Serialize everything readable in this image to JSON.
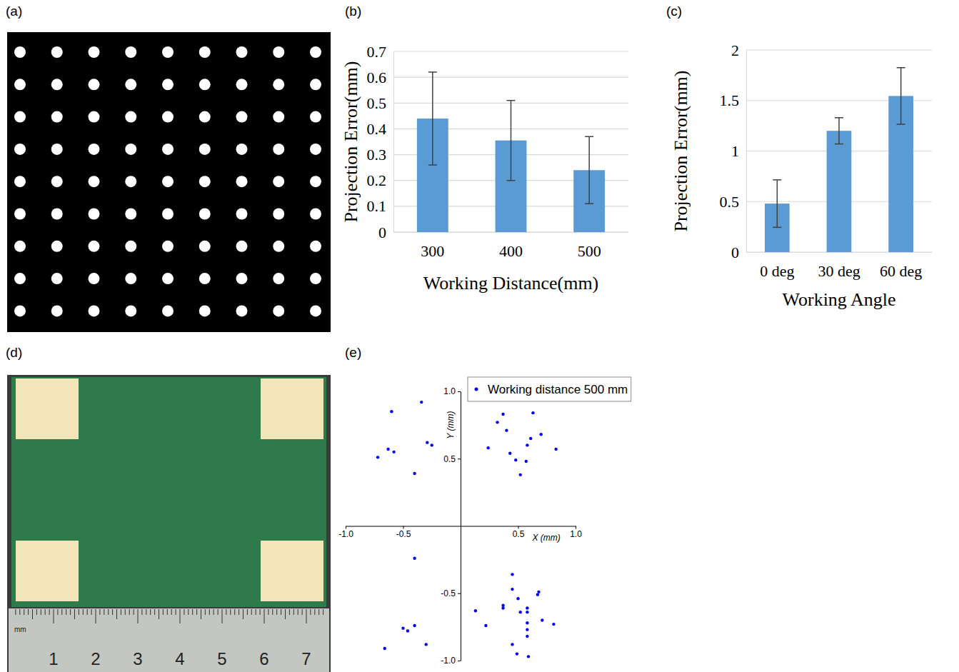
{
  "chart_data": [
    {
      "panel_label": "(b)",
      "type": "bar",
      "x_label": "Working Distance(mm)",
      "y_label": "Projection Error(mm)",
      "categories": [
        "300",
        "400",
        "500"
      ],
      "values": [
        0.44,
        0.355,
        0.24
      ],
      "errors": [
        0.18,
        0.155,
        0.13
      ],
      "color": "#5b9bd5",
      "ylim": [
        0,
        0.7
      ],
      "yticks": [
        0,
        0.1,
        0.2,
        0.3,
        0.4,
        0.5,
        0.6,
        0.7
      ],
      "grid": true
    },
    {
      "panel_label": "(c)",
      "type": "bar",
      "x_label": "Working Angle",
      "y_label": "Projection Error(mm)",
      "categories": [
        "0 deg",
        "30 deg",
        "60 deg"
      ],
      "values": [
        0.48,
        1.2,
        1.545
      ],
      "errors": [
        0.235,
        0.13,
        0.28
      ],
      "color": "#5b9bd5",
      "ylim": [
        0,
        2
      ],
      "yticks": [
        0,
        0.5,
        1,
        1.5,
        2
      ],
      "grid": true
    },
    {
      "panel_label": "(e)",
      "type": "scatter",
      "x_label": "X (mm)",
      "y_label": "Y (mm)",
      "series": [
        {
          "name": "Working distance 500 mm",
          "color": "#0000ff",
          "marker": "circle",
          "x": [
            -0.6,
            -0.34,
            -0.29,
            -0.25,
            -0.63,
            -0.58,
            -0.72,
            -0.4,
            0.32,
            0.37,
            0.4,
            0.63,
            0.7,
            0.61,
            0.58,
            0.24,
            0.43,
            0.48,
            0.57,
            0.52,
            0.83,
            -0.4,
            -0.4,
            -0.5,
            -0.46,
            -0.3,
            -0.66,
            0.45,
            0.45,
            0.68,
            0.67,
            0.5,
            0.13,
            0.37,
            0.37,
            0.58,
            0.52,
            0.58,
            0.22,
            0.58,
            0.58,
            0.71,
            0.81,
            0.58,
            0.45,
            0.49,
            0.59
          ],
          "values": [
            0.85,
            0.92,
            0.62,
            0.6,
            0.57,
            0.55,
            0.51,
            0.39,
            0.77,
            0.83,
            0.71,
            0.84,
            0.68,
            0.65,
            0.6,
            0.58,
            0.54,
            0.49,
            0.48,
            0.38,
            0.57,
            -0.24,
            -0.74,
            -0.76,
            -0.78,
            -0.88,
            -0.91,
            -0.36,
            -0.47,
            -0.49,
            -0.51,
            -0.54,
            -0.63,
            -0.59,
            -0.61,
            -0.61,
            -0.64,
            -0.64,
            -0.74,
            -0.72,
            -0.77,
            -0.7,
            -0.73,
            -0.82,
            -0.88,
            -0.95,
            -0.97
          ]
        }
      ],
      "xlim": [
        -1,
        1
      ],
      "xticks": [
        {
          "value": -1,
          "label": "-1.0"
        },
        {
          "value": -0.5,
          "label": "-0.5"
        },
        {
          "value": 0.5,
          "label": "0.5"
        },
        {
          "value": 1,
          "label": "1.0"
        }
      ],
      "ylim": [
        -1,
        1
      ],
      "yticks": [
        {
          "value": -1,
          "label": "-1.0"
        },
        {
          "value": -0.5,
          "label": "-0.5"
        },
        {
          "value": 0.5,
          "label": "0.5"
        },
        {
          "value": 1,
          "label": "1.0"
        }
      ],
      "legend": "upper right",
      "grid": false
    }
  ],
  "images": [
    {
      "panel_label": "(a)"
    },
    {
      "panel_label": "(d)",
      "ruler_unit": "mm",
      "ruler_labels": [
        1,
        2,
        3,
        4,
        5,
        6,
        7
      ]
    }
  ]
}
